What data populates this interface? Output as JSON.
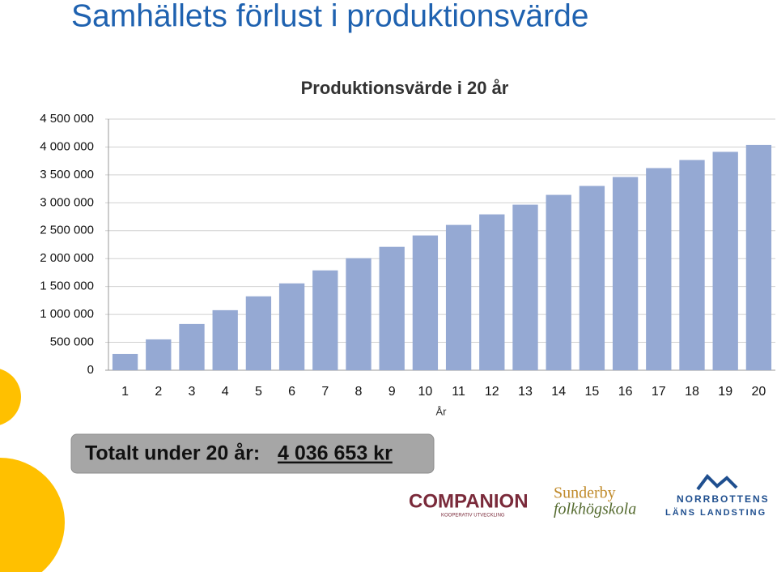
{
  "slide": {
    "title": "Samhällets förlust i produktionsvärde",
    "total_label": "Totalt under 20 år:",
    "total_value": "4 036 653 kr",
    "logos": {
      "companion": "COMPANION",
      "companion_sub": "KOOPERATIV UTVECKLING",
      "sunderby_1": "Sunderby",
      "sunderby_2": "folkhögskola",
      "norrbotten_1": "NORRBOTTENS",
      "norrbotten_2": "LÄNS LANDSTING"
    }
  },
  "chart_data": {
    "type": "bar",
    "title": "Produktionsvärde i 20 år",
    "x_label": "År",
    "categories": [
      "1",
      "2",
      "3",
      "4",
      "5",
      "6",
      "7",
      "8",
      "9",
      "10",
      "11",
      "12",
      "13",
      "14",
      "15",
      "16",
      "17",
      "18",
      "19",
      "20"
    ],
    "values": [
      291000,
      553000,
      829000,
      1076000,
      1324000,
      1556000,
      1789000,
      2007000,
      2211000,
      2415000,
      2604000,
      2793000,
      2967000,
      3142000,
      3302000,
      3462000,
      3622000,
      3767000,
      3913000,
      4036653
    ],
    "color": "#95a9d3",
    "ylim": [
      0,
      4500000
    ],
    "yticks": [
      0,
      {
        "value": 500000,
        "label": "500 000"
      },
      {
        "value": 1000000,
        "label": "1 000 000"
      },
      {
        "value": 1500000,
        "label": "1 500 000"
      },
      {
        "value": 2000000,
        "label": "2 000 000"
      },
      {
        "value": 2500000,
        "label": "2 500 000"
      },
      {
        "value": 3000000,
        "label": "3 000 000"
      },
      {
        "value": 3500000,
        "label": "3 500 000"
      },
      {
        "value": 4000000,
        "label": "4 000 000"
      },
      {
        "value": 4500000,
        "label": "4 500 000"
      }
    ],
    "grid": true
  }
}
